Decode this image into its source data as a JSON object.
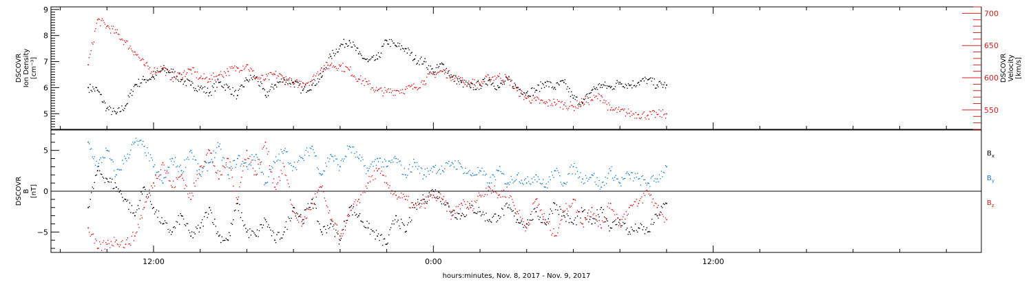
{
  "chart_data": [
    {
      "type": "scatter",
      "panel": "top",
      "ylabel_lines": [
        "DSCOVR",
        "Ion Density",
        "[cm⁻³]"
      ],
      "y2label_lines": [
        "DSCOVR",
        "Velocity",
        "[km/s]"
      ],
      "ylim": [
        4.4,
        9.1
      ],
      "y2lim": [
        520,
        710
      ],
      "yticks": [
        5,
        6,
        7,
        8,
        9
      ],
      "y2ticks": [
        550,
        600,
        650,
        700
      ],
      "series": [
        {
          "name": "",
          "axis": "left",
          "color": "#000000",
          "x": [
            -14.8,
            -14.4,
            -14.0,
            -13.6,
            -13.2,
            -12.8,
            -12.4,
            -12.0,
            -11.6,
            -11.2,
            -10.8,
            -10.4,
            -10.0,
            -9.6,
            -9.2,
            -8.8,
            -8.4,
            -8.0,
            -7.6,
            -7.2,
            -6.8,
            -6.4,
            -6.0,
            -5.6,
            -5.2,
            -4.8,
            -4.4,
            -4.0,
            -3.6,
            -3.2,
            -2.8,
            -2.4,
            -2.0,
            -1.6,
            -1.2,
            -0.8,
            -0.4,
            0.0,
            0.4,
            0.8,
            1.2,
            1.6,
            2.0,
            2.4,
            2.8,
            3.2,
            3.6,
            4.0,
            4.4,
            4.8,
            5.2,
            5.6,
            6.0,
            6.4,
            6.8,
            7.2,
            7.6,
            8.0,
            8.4,
            8.8,
            9.2,
            9.6,
            10.0
          ],
          "y": [
            6.0,
            5.9,
            5.2,
            5.0,
            5.3,
            6.1,
            6.3,
            6.4,
            6.7,
            6.6,
            6.3,
            6.1,
            6.0,
            5.8,
            6.2,
            6.0,
            5.7,
            6.3,
            6.4,
            5.7,
            6.1,
            6.3,
            6.2,
            5.9,
            6.1,
            6.4,
            7.2,
            7.6,
            7.8,
            7.3,
            7.0,
            7.1,
            7.8,
            7.6,
            7.5,
            7.1,
            7.0,
            6.6,
            6.9,
            6.4,
            6.2,
            6.0,
            6.1,
            6.3,
            6.0,
            6.3,
            6.0,
            5.8,
            5.9,
            6.2,
            6.0,
            6.2,
            5.6,
            5.4,
            5.9,
            6.1,
            6.0,
            6.2,
            6.1,
            6.2,
            6.3,
            6.1,
            6.1
          ]
        },
        {
          "name": "",
          "axis": "right",
          "color": "#d42020",
          "x": [
            -14.8,
            -14.4,
            -14.0,
            -13.6,
            -13.2,
            -12.8,
            -12.4,
            -12.0,
            -11.6,
            -11.2,
            -10.8,
            -10.4,
            -10.0,
            -9.6,
            -9.2,
            -8.8,
            -8.4,
            -8.0,
            -7.6,
            -7.2,
            -6.8,
            -6.4,
            -6.0,
            -5.6,
            -5.2,
            -4.8,
            -4.4,
            -4.0,
            -3.6,
            -3.2,
            -2.8,
            -2.4,
            -2.0,
            -1.6,
            -1.2,
            -0.8,
            -0.4,
            0.0,
            0.4,
            0.8,
            1.2,
            1.6,
            2.0,
            2.4,
            2.8,
            3.2,
            3.6,
            4.0,
            4.4,
            4.8,
            5.2,
            5.6,
            6.0,
            6.4,
            6.8,
            7.2,
            7.6,
            8.0,
            8.4,
            8.8,
            9.2,
            9.6,
            10.0
          ],
          "y": [
            620,
            690,
            680,
            670,
            655,
            640,
            620,
            610,
            615,
            600,
            605,
            612,
            600,
            598,
            604,
            610,
            615,
            620,
            600,
            598,
            605,
            600,
            590,
            592,
            596,
            615,
            620,
            618,
            612,
            598,
            590,
            580,
            578,
            580,
            582,
            585,
            595,
            606,
            610,
            602,
            595,
            592,
            590,
            600,
            602,
            598,
            580,
            568,
            565,
            560,
            562,
            558,
            555,
            562,
            566,
            572,
            550,
            548,
            545,
            543,
            542,
            543,
            544
          ]
        }
      ]
    },
    {
      "type": "scatter",
      "panel": "bottom",
      "ylabel_lines": [
        "DSCOVR",
        "B",
        "[nT]"
      ],
      "ylim": [
        -7.5,
        7.5
      ],
      "yticks": [
        -5,
        0,
        5
      ],
      "zero_line": true,
      "series": [
        {
          "name": "B",
          "subscript": "x",
          "color": "#000000",
          "x": [
            -14.8,
            -14.4,
            -14.0,
            -13.6,
            -13.2,
            -12.8,
            -12.4,
            -12.0,
            -11.6,
            -11.2,
            -10.8,
            -10.4,
            -10.0,
            -9.6,
            -9.2,
            -8.8,
            -8.4,
            -8.0,
            -7.6,
            -7.2,
            -6.8,
            -6.4,
            -6.0,
            -5.6,
            -5.2,
            -4.8,
            -4.4,
            -4.0,
            -3.6,
            -3.2,
            -2.8,
            -2.4,
            -2.0,
            -1.6,
            -1.2,
            -0.8,
            -0.4,
            0.0,
            0.4,
            0.8,
            1.2,
            1.6,
            2.0,
            2.4,
            2.8,
            3.2,
            3.6,
            4.0,
            4.4,
            4.8,
            5.2,
            5.6,
            6.0,
            6.4,
            6.8,
            7.2,
            7.6,
            8.0,
            8.4,
            8.8,
            9.2,
            9.6,
            10.0
          ],
          "y": [
            -2.0,
            2.5,
            1.5,
            0.5,
            -1.0,
            -3.0,
            0.5,
            -2.0,
            -4.0,
            -5.0,
            -3.0,
            -5.5,
            -4.5,
            -2.0,
            -5.5,
            -6.0,
            -1.5,
            -5.0,
            -5.5,
            -3.5,
            -6.0,
            -5.0,
            -2.0,
            -3.5,
            -1.0,
            -5.0,
            -4.0,
            -6.0,
            -2.0,
            -3.0,
            -4.5,
            -5.5,
            -6.5,
            -3.0,
            -5.0,
            -2.0,
            -1.0,
            0.0,
            -1.0,
            -2.5,
            -3.0,
            -2.0,
            -2.5,
            -3.5,
            -3.0,
            -2.0,
            -3.5,
            -4.0,
            -2.5,
            -4.0,
            -1.5,
            -3.0,
            -4.0,
            -2.5,
            -4.0,
            -2.0,
            -4.5,
            -3.5,
            -5.0,
            -4.5,
            -5.0,
            -3.0,
            -1.5
          ]
        },
        {
          "name": "B",
          "subscript": "y",
          "color": "#1f7fd0",
          "x": [
            -14.8,
            -14.4,
            -14.0,
            -13.6,
            -13.2,
            -12.8,
            -12.4,
            -12.0,
            -11.6,
            -11.2,
            -10.8,
            -10.4,
            -10.0,
            -9.6,
            -9.2,
            -8.8,
            -8.4,
            -8.0,
            -7.6,
            -7.2,
            -6.8,
            -6.4,
            -6.0,
            -5.6,
            -5.2,
            -4.8,
            -4.4,
            -4.0,
            -3.6,
            -3.2,
            -2.8,
            -2.4,
            -2.0,
            -1.6,
            -1.2,
            -0.8,
            -0.4,
            0.0,
            0.4,
            0.8,
            1.2,
            1.6,
            2.0,
            2.4,
            2.8,
            3.2,
            3.6,
            4.0,
            4.4,
            4.8,
            5.2,
            5.6,
            6.0,
            6.4,
            6.8,
            7.2,
            7.6,
            8.0,
            8.4,
            8.8,
            9.2,
            9.6,
            10.0
          ],
          "y": [
            6.0,
            3.0,
            5.0,
            2.0,
            4.0,
            6.0,
            5.5,
            3.0,
            1.0,
            4.0,
            2.5,
            5.0,
            2.0,
            3.5,
            5.5,
            2.0,
            4.0,
            3.0,
            4.5,
            1.0,
            3.5,
            5.0,
            3.0,
            4.0,
            5.5,
            2.0,
            4.5,
            3.0,
            5.5,
            4.0,
            2.5,
            4.0,
            3.0,
            4.0,
            2.0,
            3.5,
            2.0,
            3.0,
            2.5,
            3.5,
            3.0,
            2.0,
            2.5,
            1.0,
            2.5,
            1.0,
            2.0,
            1.0,
            2.0,
            0.5,
            2.5,
            1.0,
            3.0,
            1.5,
            2.0,
            0.5,
            2.5,
            1.0,
            2.0,
            1.5,
            1.0,
            1.5,
            3.0
          ]
        },
        {
          "name": "B",
          "subscript": "z",
          "color": "#d42020",
          "x": [
            -14.8,
            -14.4,
            -14.0,
            -13.6,
            -13.2,
            -12.8,
            -12.4,
            -12.0,
            -11.6,
            -11.2,
            -10.8,
            -10.4,
            -10.0,
            -9.6,
            -9.2,
            -8.8,
            -8.4,
            -8.0,
            -7.6,
            -7.2,
            -6.8,
            -6.4,
            -6.0,
            -5.6,
            -5.2,
            -4.8,
            -4.4,
            -4.0,
            -3.6,
            -3.2,
            -2.8,
            -2.4,
            -2.0,
            -1.6,
            -1.2,
            -0.8,
            -0.4,
            0.0,
            0.4,
            0.8,
            1.2,
            1.6,
            2.0,
            2.4,
            2.8,
            3.2,
            3.6,
            4.0,
            4.4,
            4.8,
            5.2,
            5.6,
            6.0,
            6.4,
            6.8,
            7.2,
            7.6,
            8.0,
            8.4,
            8.8,
            9.2,
            9.6,
            10.0
          ],
          "y": [
            -4.5,
            -7.0,
            -6.5,
            -6.0,
            -6.5,
            -5.5,
            -2.0,
            1.0,
            3.5,
            0.5,
            2.0,
            -1.0,
            3.0,
            5.0,
            1.5,
            4.0,
            -1.0,
            5.0,
            2.0,
            6.0,
            0.5,
            3.0,
            -2.5,
            -4.0,
            -1.5,
            0.5,
            -3.5,
            -5.5,
            -3.0,
            -1.0,
            1.0,
            2.5,
            1.0,
            -0.5,
            -1.0,
            -2.0,
            -1.5,
            -0.5,
            -1.0,
            -3.0,
            -1.5,
            -2.0,
            -0.5,
            0.5,
            -0.5,
            0.0,
            -2.5,
            -4.5,
            -1.0,
            -3.5,
            -5.5,
            -2.5,
            -1.0,
            -4.0,
            -2.0,
            -4.5,
            -1.5,
            -4.0,
            -2.0,
            -1.5,
            0.0,
            -2.0,
            -3.5
          ]
        }
      ]
    }
  ],
  "x_axis": {
    "xlim": [
      -16.4,
      23.5
    ],
    "tick_values": [
      -12,
      0,
      12
    ],
    "tick_labels": [
      "12:00",
      "0:00",
      "12:00"
    ],
    "minor_step_hours": 2,
    "label": "hours:minutes, Nov.  8, 2017 - Nov.  9, 2017"
  },
  "colors": {
    "black": "#000000",
    "red": "#d42020",
    "blue": "#1f7fd0"
  }
}
